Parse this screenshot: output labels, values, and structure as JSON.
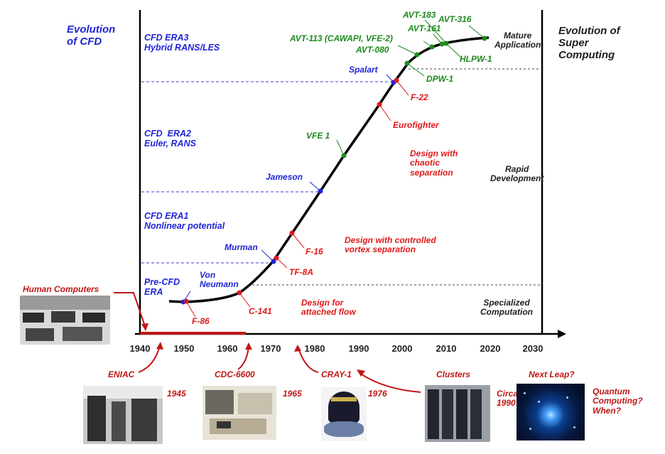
{
  "left_title": "Evolution\nof CFD",
  "right_title": "Evolution of\nSuper\nComputing",
  "eras": [
    {
      "id": "era3",
      "text": "CFD ERA3\nHybrid RANS/LES"
    },
    {
      "id": "era2",
      "text": "CFD  ERA2\nEuler, RANS"
    },
    {
      "id": "era1",
      "text": "CFD ERA1\nNonlinear potential"
    },
    {
      "id": "pre",
      "text": "Pre-CFD\nERA"
    }
  ],
  "phases": {
    "mature": "Mature\nApplication",
    "rapid": "Rapid\nDevelopment",
    "specialized": "Specialized\nComputation"
  },
  "design_notes": {
    "chaotic": "Design with\nchaotic\nseparation",
    "vortex": "Design with controlled\nvortex separation",
    "attached": "Design for\nattached flow"
  },
  "people": {
    "von_neumann": "Von\nNeumann",
    "murman": "Murman",
    "jameson": "Jameson",
    "spalart": "Spalart"
  },
  "aircraft": {
    "f86": "F-86",
    "c141": "C-141",
    "tf8a": "TF-8A",
    "f16": "F-16",
    "eurofighter": "Eurofighter",
    "f22": "F-22"
  },
  "experiments": {
    "vfe1": "VFE 1",
    "dpw1": "DPW-1",
    "avt080": "AVT-080",
    "avt113": "AVT-113 (CAWAPI, VFE-2)",
    "avt161": "AVT-161",
    "avt183": "AVT-183",
    "avt316": "AVT-316",
    "hlpw1": "HLPW-1"
  },
  "x_ticks": [
    "1940",
    "1950",
    "1960",
    "1970",
    "1980",
    "1990",
    "2000",
    "2010",
    "2020",
    "2030"
  ],
  "human_computers": "Human Computers",
  "computers": [
    {
      "name": "ENIAC",
      "year": "1945"
    },
    {
      "name": "CDC-6600",
      "year": "1965"
    },
    {
      "name": "CRAY-1",
      "year": "1976"
    },
    {
      "name": "Clusters",
      "year": "Circa\n1990"
    },
    {
      "name": "Next Leap?",
      "year": "Quantum\nComputing?\nWhen?"
    }
  ],
  "colors": {
    "blue": "#1f26d6",
    "red": "#e01818",
    "green": "#1f8a1f",
    "curve": "#000000",
    "bar": "#c01616"
  }
}
